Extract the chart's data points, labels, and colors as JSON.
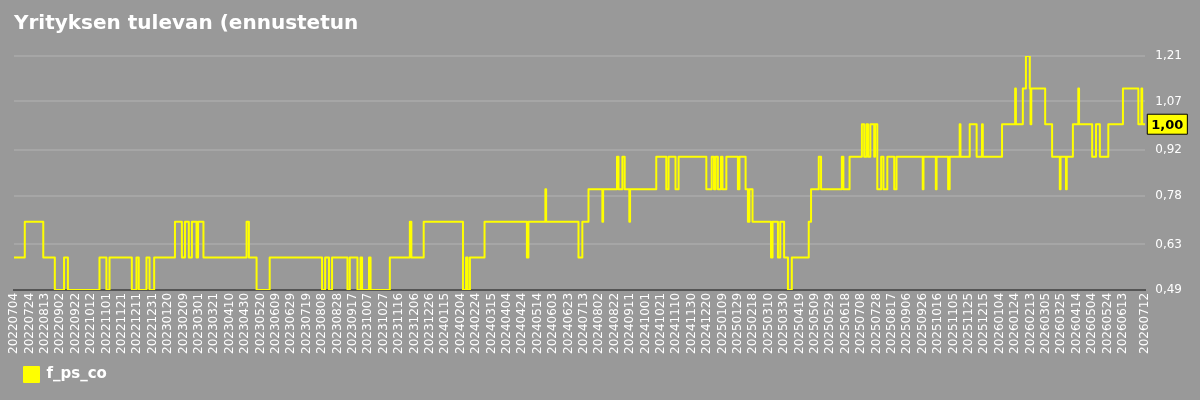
{
  "chart_data": {
    "type": "step",
    "title": "Yrityksen tulevan (ennustetun",
    "x": [
      "2022-07-04",
      "2022-07-18",
      "2022-08-11",
      "2022-08-26",
      "2022-09-07",
      "2022-09-12",
      "2022-10-23",
      "2022-11-01",
      "2022-11-05",
      "2022-12-04",
      "2022-12-10",
      "2022-12-13",
      "2022-12-23",
      "2022-12-27",
      "2023-01-02",
      "2023-01-29",
      "2023-02-07",
      "2023-02-11",
      "2023-02-16",
      "2023-02-20",
      "2023-02-26",
      "2023-02-28",
      "2023-03-07",
      "2023-05-02",
      "2023-05-05",
      "2023-05-15",
      "2023-06-01",
      "2023-08-08",
      "2023-08-12",
      "2023-08-17",
      "2023-08-21",
      "2023-09-10",
      "2023-09-13",
      "2023-09-23",
      "2023-09-27",
      "2023-09-29",
      "2023-10-08",
      "2023-10-10",
      "2023-11-04",
      "2023-11-30",
      "2023-12-02",
      "2023-12-18",
      "2024-02-07",
      "2024-02-11",
      "2024-02-13",
      "2024-02-16",
      "2024-03-06",
      "2024-04-30",
      "2024-05-02",
      "2024-05-24",
      "2024-05-25",
      "2024-07-06",
      "2024-07-11",
      "2024-07-19",
      "2024-07-21",
      "2024-08-06",
      "2024-08-07",
      "2024-08-25",
      "2024-08-27",
      "2024-09-01",
      "2024-09-04",
      "2024-09-10",
      "2024-09-11",
      "2024-10-15",
      "2024-10-28",
      "2024-10-31",
      "2024-11-09",
      "2024-11-13",
      "2024-12-19",
      "2024-12-26",
      "2024-12-29",
      "2024-12-31",
      "2025-01-03",
      "2025-01-07",
      "2025-01-09",
      "2025-01-14",
      "2025-01-29",
      "2025-01-31",
      "2025-02-08",
      "2025-02-11",
      "2025-02-13",
      "2025-02-17",
      "2025-03-13",
      "2025-03-15",
      "2025-03-22",
      "2025-03-25",
      "2025-03-30",
      "2025-04-04",
      "2025-04-09",
      "2025-05-01",
      "2025-05-04",
      "2025-05-14",
      "2025-05-17",
      "2025-06-13",
      "2025-06-15",
      "2025-06-23",
      "2025-07-09",
      "2025-07-12",
      "2025-07-15",
      "2025-07-17",
      "2025-07-20",
      "2025-07-25",
      "2025-07-26",
      "2025-07-29",
      "2025-08-03",
      "2025-08-06",
      "2025-08-11",
      "2025-08-20",
      "2025-08-23",
      "2025-09-26",
      "2025-09-27",
      "2025-10-13",
      "2025-10-14",
      "2025-10-29",
      "2025-10-31",
      "2025-11-13",
      "2025-11-14",
      "2025-11-26",
      "2025-12-05",
      "2025-12-12",
      "2025-12-13",
      "2026-01-07",
      "2026-01-24",
      "2026-01-25",
      "2026-02-03",
      "2026-02-07",
      "2026-02-12",
      "2026-02-13",
      "2026-02-14",
      "2026-03-04",
      "2026-03-13",
      "2026-03-23",
      "2026-03-24",
      "2026-03-31",
      "2026-04-01",
      "2026-04-09",
      "2026-04-16",
      "2026-04-17",
      "2026-05-04",
      "2026-05-09",
      "2026-05-14",
      "2026-05-25",
      "2026-06-13",
      "2026-07-03",
      "2026-07-07",
      "2026-07-08",
      "2026-07-12"
    ],
    "series": [
      {
        "name": "f_ps_co",
        "color": "#ffff00",
        "values": [
          0.59,
          0.7,
          0.59,
          0.49,
          0.59,
          0.49,
          0.59,
          0.49,
          0.59,
          0.49,
          0.59,
          0.49,
          0.59,
          0.49,
          0.59,
          0.7,
          0.59,
          0.7,
          0.59,
          0.7,
          0.59,
          0.7,
          0.59,
          0.7,
          0.59,
          0.49,
          0.59,
          0.49,
          0.59,
          0.49,
          0.59,
          0.49,
          0.59,
          0.49,
          0.59,
          0.49,
          0.59,
          0.49,
          0.59,
          0.7,
          0.59,
          0.7,
          0.49,
          0.59,
          0.49,
          0.59,
          0.7,
          0.59,
          0.7,
          0.8,
          0.7,
          0.59,
          0.7,
          0.8,
          0.8,
          0.7,
          0.8,
          0.9,
          0.8,
          0.9,
          0.8,
          0.7,
          0.8,
          0.9,
          0.8,
          0.9,
          0.8,
          0.9,
          0.8,
          0.9,
          0.8,
          0.9,
          0.8,
          0.9,
          0.8,
          0.9,
          0.8,
          0.9,
          0.8,
          0.7,
          0.8,
          0.7,
          0.59,
          0.7,
          0.59,
          0.7,
          0.59,
          0.49,
          0.59,
          0.7,
          0.8,
          0.9,
          0.8,
          0.9,
          0.8,
          0.9,
          1.0,
          0.9,
          1.0,
          0.9,
          1.0,
          0.9,
          1.0,
          0.8,
          0.9,
          0.8,
          0.9,
          0.8,
          0.9,
          0.8,
          0.9,
          0.8,
          0.9,
          0.8,
          0.9,
          1.0,
          0.9,
          1.0,
          0.9,
          1.0,
          0.9,
          1.0,
          1.11,
          1.0,
          1.11,
          1.21,
          1.11,
          1.0,
          1.11,
          1.0,
          0.9,
          0.8,
          0.9,
          0.8,
          0.9,
          1.0,
          1.11,
          1.0,
          0.9,
          1.0,
          0.9,
          1.0,
          1.11,
          1.0,
          1.11,
          1.0,
          1.0
        ]
      }
    ],
    "ylim": [
      0.49,
      1.21
    ],
    "yticks": [
      {
        "value": 0.49,
        "label": "0,49"
      },
      {
        "value": 0.63,
        "label": "0,63"
      },
      {
        "value": 0.78,
        "label": "0,78"
      },
      {
        "value": 0.92,
        "label": "0,92"
      },
      {
        "value": 1.07,
        "label": "1,07"
      },
      {
        "value": 1.21,
        "label": "1,21"
      }
    ],
    "xlim": [
      "2022-07-04",
      "2026-07-12"
    ],
    "xticks": [
      {
        "value": "2022-07-04",
        "label": "20220704"
      },
      {
        "value": "2022-07-24",
        "label": "20220724"
      },
      {
        "value": "2022-08-13",
        "label": "20220813"
      },
      {
        "value": "2022-09-02",
        "label": "20220902"
      },
      {
        "value": "2022-09-22",
        "label": "20220922"
      },
      {
        "value": "2022-10-12",
        "label": "20221012"
      },
      {
        "value": "2022-11-01",
        "label": "20221101"
      },
      {
        "value": "2022-11-21",
        "label": "20221121"
      },
      {
        "value": "2022-12-11",
        "label": "20221211"
      },
      {
        "value": "2022-12-31",
        "label": "20221231"
      },
      {
        "value": "2023-01-20",
        "label": "20230120"
      },
      {
        "value": "2023-02-09",
        "label": "20230209"
      },
      {
        "value": "2023-03-01",
        "label": "20230301"
      },
      {
        "value": "2023-03-21",
        "label": "20230321"
      },
      {
        "value": "2023-04-10",
        "label": "20230410"
      },
      {
        "value": "2023-04-30",
        "label": "20230430"
      },
      {
        "value": "2023-05-20",
        "label": "20230520"
      },
      {
        "value": "2023-06-09",
        "label": "20230609"
      },
      {
        "value": "2023-06-29",
        "label": "20230629"
      },
      {
        "value": "2023-07-19",
        "label": "20230719"
      },
      {
        "value": "2023-08-08",
        "label": "20230808"
      },
      {
        "value": "2023-08-28",
        "label": "20230828"
      },
      {
        "value": "2023-09-17",
        "label": "20230917"
      },
      {
        "value": "2023-10-07",
        "label": "20231007"
      },
      {
        "value": "2023-10-27",
        "label": "20231027"
      },
      {
        "value": "2023-11-16",
        "label": "20231116"
      },
      {
        "value": "2023-12-06",
        "label": "20231206"
      },
      {
        "value": "2023-12-26",
        "label": "20231226"
      },
      {
        "value": "2024-01-15",
        "label": "20240115"
      },
      {
        "value": "2024-02-04",
        "label": "20240204"
      },
      {
        "value": "2024-02-24",
        "label": "20240224"
      },
      {
        "value": "2024-03-15",
        "label": "20240315"
      },
      {
        "value": "2024-04-04",
        "label": "20240404"
      },
      {
        "value": "2024-04-24",
        "label": "20240424"
      },
      {
        "value": "2024-05-14",
        "label": "20240514"
      },
      {
        "value": "2024-06-03",
        "label": "20240603"
      },
      {
        "value": "2024-06-23",
        "label": "20240623"
      },
      {
        "value": "2024-07-13",
        "label": "20240713"
      },
      {
        "value": "2024-08-02",
        "label": "20240802"
      },
      {
        "value": "2024-08-22",
        "label": "20240822"
      },
      {
        "value": "2024-09-11",
        "label": "20240911"
      },
      {
        "value": "2024-10-01",
        "label": "20241001"
      },
      {
        "value": "2024-10-21",
        "label": "20241021"
      },
      {
        "value": "2024-11-10",
        "label": "20241110"
      },
      {
        "value": "2024-11-30",
        "label": "20241130"
      },
      {
        "value": "2024-12-20",
        "label": "20241220"
      },
      {
        "value": "2025-01-09",
        "label": "20250109"
      },
      {
        "value": "2025-01-29",
        "label": "20250129"
      },
      {
        "value": "2025-02-18",
        "label": "20250218"
      },
      {
        "value": "2025-03-10",
        "label": "20250310"
      },
      {
        "value": "2025-03-30",
        "label": "20250330"
      },
      {
        "value": "2025-04-19",
        "label": "20250419"
      },
      {
        "value": "2025-05-09",
        "label": "20250509"
      },
      {
        "value": "2025-05-29",
        "label": "20250529"
      },
      {
        "value": "2025-06-18",
        "label": "20250618"
      },
      {
        "value": "2025-07-08",
        "label": "20250708"
      },
      {
        "value": "2025-07-28",
        "label": "20250728"
      },
      {
        "value": "2025-08-17",
        "label": "20250817"
      },
      {
        "value": "2025-09-06",
        "label": "20250906"
      },
      {
        "value": "2025-09-26",
        "label": "20250926"
      },
      {
        "value": "2025-10-16",
        "label": "20251016"
      },
      {
        "value": "2025-11-05",
        "label": "20251105"
      },
      {
        "value": "2025-11-25",
        "label": "20251125"
      },
      {
        "value": "2025-12-15",
        "label": "20251215"
      },
      {
        "value": "2026-01-04",
        "label": "20260104"
      },
      {
        "value": "2026-01-24",
        "label": "20260124"
      },
      {
        "value": "2026-02-13",
        "label": "20260213"
      },
      {
        "value": "2026-03-05",
        "label": "20260305"
      },
      {
        "value": "2026-03-25",
        "label": "20260325"
      },
      {
        "value": "2026-04-14",
        "label": "20260414"
      },
      {
        "value": "2026-05-04",
        "label": "20260504"
      },
      {
        "value": "2026-05-24",
        "label": "20260524"
      },
      {
        "value": "2026-06-13",
        "label": "20260613"
      },
      {
        "value": "2026-07-12",
        "label": "20260712"
      }
    ],
    "grid": "y",
    "legend": "bottom left",
    "annotations": [
      {
        "text": "1,00",
        "x": "2026-07-12",
        "y": 1.0
      }
    ]
  }
}
